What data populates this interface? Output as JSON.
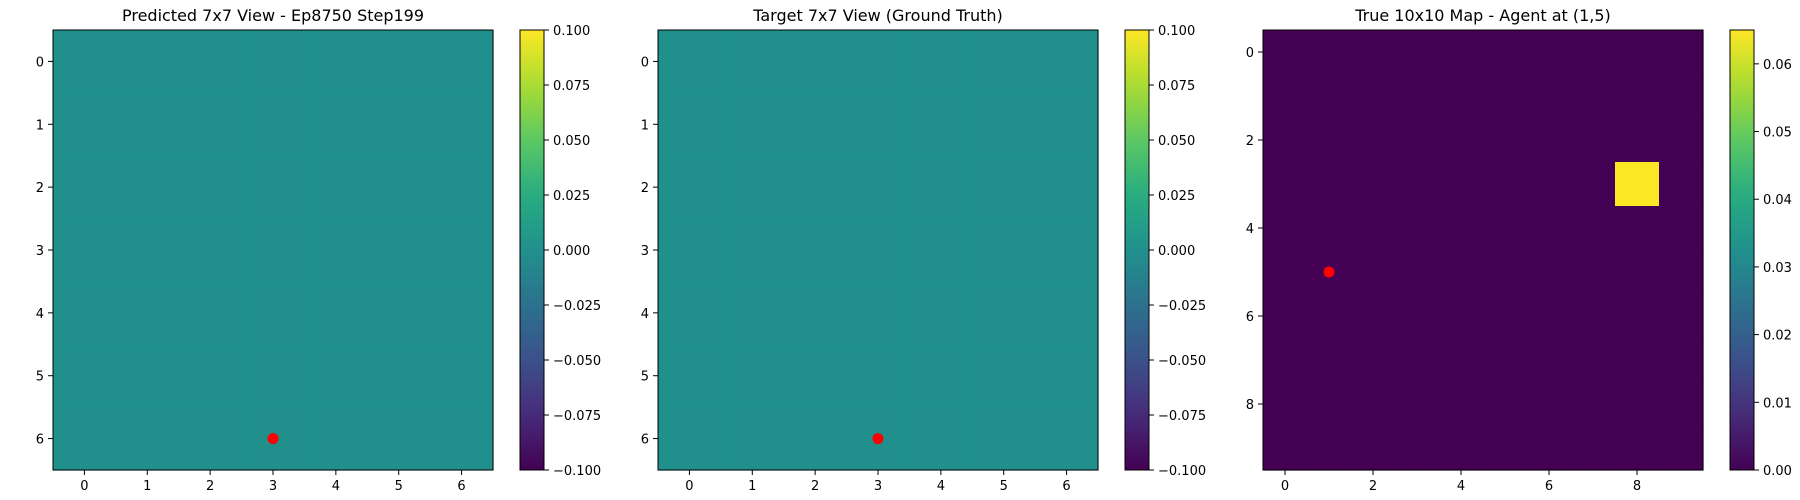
{
  "figure": {
    "background": "#ffffff"
  },
  "chart_data": [
    {
      "type": "heatmap",
      "title": "Predicted 7x7 View - Ep8750 Step199",
      "grid": [
        7,
        7
      ],
      "fill_value": 0.0,
      "cells": [],
      "xticks": [
        0,
        1,
        2,
        3,
        4,
        5,
        6
      ],
      "yticks": [
        0,
        1,
        2,
        3,
        4,
        5,
        6
      ],
      "xlim": [
        -0.5,
        6.5
      ],
      "ylim": [
        6.5,
        -0.5
      ],
      "colorbar": {
        "min": -0.1,
        "max": 0.1,
        "ticks": [
          "0.100",
          "0.075",
          "0.050",
          "0.025",
          "0.000",
          "−0.025",
          "−0.050",
          "−0.075",
          "−0.100"
        ],
        "tick_values": [
          0.1,
          0.075,
          0.05,
          0.025,
          0.0,
          -0.025,
          -0.05,
          -0.075,
          -0.1
        ]
      },
      "marker": {
        "x": 3,
        "y": 6,
        "color": "#ff0000"
      },
      "colormap": "viridis"
    },
    {
      "type": "heatmap",
      "title": "Target 7x7 View (Ground Truth)",
      "grid": [
        7,
        7
      ],
      "fill_value": 0.0,
      "cells": [],
      "xticks": [
        0,
        1,
        2,
        3,
        4,
        5,
        6
      ],
      "yticks": [
        0,
        1,
        2,
        3,
        4,
        5,
        6
      ],
      "xlim": [
        -0.5,
        6.5
      ],
      "ylim": [
        6.5,
        -0.5
      ],
      "colorbar": {
        "min": -0.1,
        "max": 0.1,
        "ticks": [
          "0.100",
          "0.075",
          "0.050",
          "0.025",
          "0.000",
          "−0.025",
          "−0.050",
          "−0.075",
          "−0.100"
        ],
        "tick_values": [
          0.1,
          0.075,
          0.05,
          0.025,
          0.0,
          -0.025,
          -0.05,
          -0.075,
          -0.1
        ]
      },
      "marker": {
        "x": 3,
        "y": 6,
        "color": "#ff0000"
      },
      "colormap": "viridis"
    },
    {
      "type": "heatmap",
      "title": "True 10x10 Map - Agent at (1,5)",
      "grid": [
        10,
        10
      ],
      "fill_value": 0.0,
      "cells": [
        {
          "x": 8,
          "y": 3,
          "value": 0.065
        }
      ],
      "xticks": [
        0,
        2,
        4,
        6,
        8
      ],
      "yticks": [
        0,
        2,
        4,
        6,
        8
      ],
      "xlim": [
        -0.5,
        9.5
      ],
      "ylim": [
        9.5,
        -0.5
      ],
      "colorbar": {
        "min": 0.0,
        "max": 0.065,
        "ticks": [
          "0.06",
          "0.05",
          "0.04",
          "0.03",
          "0.02",
          "0.01",
          "0.00"
        ],
        "tick_values": [
          0.06,
          0.05,
          0.04,
          0.03,
          0.02,
          0.01,
          0.0
        ]
      },
      "marker": {
        "x": 1,
        "y": 5,
        "color": "#ff0000"
      },
      "colormap": "viridis"
    }
  ]
}
